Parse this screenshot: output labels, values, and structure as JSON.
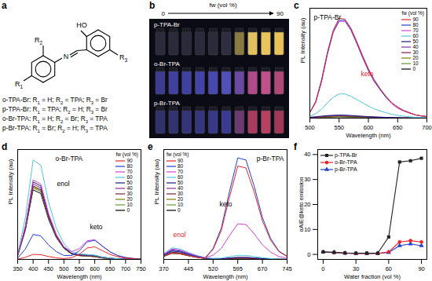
{
  "panels": {
    "a": {
      "panel_label": "a",
      "structure_labels": {
        "hydroxyl": "HO",
        "imine": "N",
        "R1": "R1",
        "R2": "R2",
        "R3": "R3"
      },
      "compounds": [
        "o-TPA-Br: R1 = H; R2 = TPA; R3 = Br",
        "p-TPA-Br: R1 = TPA; R2 = H; R3 = Br",
        "o-Br-TPA: R1 = H; R2 = Br; R3 = TPA",
        "p-Br-TPA: R1 = Br; R2 = H; R3 = TPA"
      ]
    },
    "b": {
      "panel_label": "b",
      "axis_label": "fw (vol %)",
      "range": [
        0,
        90
      ],
      "rows": [
        {
          "name": "p-TPA-Br",
          "vial_colors": [
            "#2a2a3a",
            "#2a2a3a",
            "#2a2a3a",
            "#2a2a3a",
            "#2a2a3a",
            "#2e2e40",
            "#8a7a40",
            "#e0c060",
            "#e8c45a",
            "#e6c258"
          ]
        },
        {
          "name": "o-Br-TPA",
          "vial_colors": [
            "#3c3c90",
            "#4040a0",
            "#4040a0",
            "#4444a8",
            "#4848b0",
            "#5050b8",
            "#6a4aa0",
            "#b04a8a",
            "#c0508a",
            "#b04878"
          ]
        },
        {
          "name": "p-Br-TPA",
          "vial_colors": [
            "#30306a",
            "#323270",
            "#343478",
            "#363680",
            "#383888",
            "#3a3a90",
            "#6a3a70",
            "#a83a60",
            "#b84060",
            "#a03858"
          ]
        }
      ]
    }
  },
  "chart_data": [
    {
      "panel_label": "c",
      "type": "line",
      "title": "p-TPA-Br",
      "x_label": "Wavelength (nm)",
      "y_label": "PL Intensity (au)",
      "x": [
        500,
        510,
        520,
        530,
        540,
        550,
        560,
        570,
        580,
        590,
        600,
        610,
        620,
        630,
        640,
        650,
        660,
        670,
        680,
        690,
        700
      ],
      "xlim": [
        500,
        700
      ],
      "xticks": [
        500,
        550,
        600,
        650,
        700
      ],
      "ylim": [
        0,
        100
      ],
      "yticks": [],
      "tick_labels": "x",
      "legend": "top-right",
      "legend_title": "fw (vol %)",
      "annotations": [
        {
          "text": "keto",
          "color": "#e8262b"
        }
      ],
      "series": [
        {
          "name": "90",
          "color": "#e8262b",
          "values": [
            5,
            15,
            35,
            60,
            80,
            91,
            90,
            82,
            70,
            57,
            45,
            35,
            27,
            20,
            14,
            10,
            7,
            5,
            3,
            2,
            1.5
          ]
        },
        {
          "name": "80",
          "color": "#1f3fd1",
          "values": [
            5,
            15,
            34,
            59,
            79,
            89,
            89,
            81,
            69,
            56,
            44,
            34,
            26,
            19,
            14,
            10,
            7,
            5,
            3,
            2,
            1.5
          ]
        },
        {
          "name": "70",
          "color": "#d63fd6",
          "values": [
            5,
            14,
            33,
            58,
            78,
            88,
            88,
            80,
            68,
            55,
            43,
            33,
            26,
            19,
            13,
            9,
            6.5,
            4.5,
            3,
            2,
            1.5
          ]
        },
        {
          "name": "60",
          "color": "#4fc5e0",
          "values": [
            1.5,
            4,
            8,
            14,
            19,
            22,
            22,
            20,
            17,
            14,
            11,
            8.5,
            6.5,
            5,
            3.5,
            2.5,
            1.8,
            1.3,
            0.8,
            0.5,
            0.4
          ]
        },
        {
          "name": "50",
          "color": "#1a1a80",
          "values": [
            0.8,
            1.2,
            1.8,
            2.3,
            2.6,
            2.8,
            2.7,
            2.4,
            2,
            1.7,
            1.4,
            1.1,
            0.9,
            0.7,
            0.5,
            0.4,
            0.3,
            0.2,
            0.2,
            0.1,
            0.1
          ]
        },
        {
          "name": "40",
          "color": "#8b2fa0",
          "values": [
            0.6,
            1,
            1.5,
            2,
            2.3,
            2.4,
            2.3,
            2.1,
            1.8,
            1.5,
            1.2,
            1,
            0.8,
            0.6,
            0.4,
            0.3,
            0.2,
            0.2,
            0.1,
            0.1,
            0.1
          ]
        },
        {
          "name": "30",
          "color": "#7a1f3d",
          "values": [
            0.5,
            0.8,
            1.2,
            1.6,
            1.9,
            2,
            1.9,
            1.7,
            1.5,
            1.2,
            1,
            0.8,
            0.6,
            0.5,
            0.3,
            0.2,
            0.2,
            0.1,
            0.1,
            0.1,
            0.1
          ]
        },
        {
          "name": "20",
          "color": "#808000",
          "values": [
            0.4,
            0.7,
            1,
            1.3,
            1.5,
            1.6,
            1.5,
            1.4,
            1.2,
            1,
            0.8,
            0.6,
            0.5,
            0.4,
            0.3,
            0.2,
            0.1,
            0.1,
            0.1,
            0.1,
            0
          ]
        },
        {
          "name": "10",
          "color": "#5a9a2e",
          "values": [
            0.3,
            0.5,
            0.8,
            1,
            1.2,
            1.3,
            1.2,
            1.1,
            1,
            0.8,
            0.6,
            0.5,
            0.4,
            0.3,
            0.2,
            0.2,
            0.1,
            0.1,
            0.1,
            0,
            0
          ]
        },
        {
          "name": "0",
          "color": "#000000",
          "values": [
            0.3,
            0.5,
            0.7,
            0.9,
            1.1,
            1.2,
            1.1,
            1,
            0.9,
            0.7,
            0.6,
            0.5,
            0.4,
            0.3,
            0.2,
            0.1,
            0.1,
            0.1,
            0,
            0,
            0
          ]
        }
      ]
    },
    {
      "panel_label": "d",
      "type": "line",
      "title": "o-Br-TPA",
      "x_label": "Wavelength (nm)",
      "y_label": "PL Intensity (au)",
      "x": [
        350,
        375,
        400,
        425,
        450,
        475,
        500,
        525,
        550,
        575,
        600,
        625,
        650,
        675,
        700,
        725,
        750
      ],
      "xlim": [
        350,
        750
      ],
      "xticks": [
        350,
        400,
        450,
        500,
        550,
        600,
        650,
        700,
        750
      ],
      "ylim": [
        0,
        105
      ],
      "yticks": [],
      "tick_labels": "x",
      "legend": "top-right",
      "legend_title": "fw (vol %)",
      "annotations": [
        {
          "text": "enol",
          "color": "#000000"
        },
        {
          "text": "keto",
          "color": "#000000"
        }
      ],
      "series": [
        {
          "name": "90",
          "color": "#e8262b",
          "values": [
            0.3,
            2,
            4.8,
            4.5,
            2.8,
            1.5,
            0.8,
            1.6,
            5,
            10.9,
            12,
            8.4,
            4.8,
            2.4,
            1.2,
            0.6,
            0.2
          ]
        },
        {
          "name": "80",
          "color": "#1f3fd1",
          "values": [
            1.3,
            10,
            23.8,
            22.5,
            13.8,
            7.5,
            3.8,
            3.6,
            8.2,
            16.7,
            18.3,
            12.6,
            7.2,
            3.6,
            1.8,
            0.9,
            0.4
          ]
        },
        {
          "name": "70",
          "color": "#d63fd6",
          "values": [
            4,
            32,
            76,
            72,
            44,
            24,
            12,
            7.4,
            10.4,
            17.8,
            18.8,
            12.6,
            7.2,
            3.6,
            1.8,
            0.9,
            0.4
          ]
        },
        {
          "name": "60",
          "color": "#4fc5e0",
          "values": [
            5,
            40,
            95,
            90,
            55,
            30,
            15,
            7.3,
            5.2,
            4.7,
            4,
            2.1,
            1.2,
            0.6,
            0.3,
            0.2,
            0.1
          ]
        },
        {
          "name": "50",
          "color": "#1a1a80",
          "values": [
            3.9,
            31.2,
            74.1,
            70.2,
            42.9,
            23.4,
            11.7,
            5.8,
            4.3,
            4.3,
            3.8,
            2.1,
            1.2,
            0.6,
            0.3,
            0.2,
            0.1
          ]
        },
        {
          "name": "40",
          "color": "#8b2fa0",
          "values": [
            3.8,
            30.4,
            72.2,
            68.4,
            41.8,
            22.8,
            11.4,
            5.6,
            4.2,
            4.2,
            3.8,
            2.1,
            1.2,
            0.6,
            0.3,
            0.2,
            0.1
          ]
        },
        {
          "name": "30",
          "color": "#7a1f3d",
          "values": [
            3.7,
            29.6,
            70.3,
            66.6,
            40.7,
            22.2,
            11.1,
            5.4,
            3.8,
            3.3,
            2.7,
            1.4,
            0.8,
            0.4,
            0.2,
            0.1,
            0
          ]
        },
        {
          "name": "20",
          "color": "#808000",
          "values": [
            3.7,
            29.2,
            69.4,
            65.7,
            40.2,
            21.9,
            11,
            5.3,
            3.7,
            3.3,
            2.7,
            1.4,
            0.8,
            0.4,
            0.2,
            0.1,
            0
          ]
        },
        {
          "name": "10",
          "color": "#5a9a2e",
          "values": [
            3.6,
            28.8,
            68.4,
            64.8,
            39.6,
            21.6,
            10.8,
            5.2,
            3.7,
            3.2,
            2.7,
            1.4,
            0.8,
            0.4,
            0.2,
            0.1,
            0
          ]
        },
        {
          "name": "0",
          "color": "#000000",
          "values": [
            3.5,
            28,
            66.5,
            63,
            38.5,
            21,
            10.5,
            5.1,
            3.6,
            3.2,
            2.7,
            1.4,
            0.8,
            0.4,
            0.2,
            0.1,
            0
          ]
        }
      ]
    },
    {
      "panel_label": "e",
      "type": "line",
      "title": "p-Br-TPA",
      "x_label": "Wavelength (nm)",
      "y_label": "PL Intensity (au)",
      "x": [
        370,
        395,
        420,
        445,
        470,
        495,
        520,
        545,
        570,
        595,
        620,
        645,
        670,
        695,
        720,
        745
      ],
      "xlim": [
        370,
        745
      ],
      "xticks": [
        370,
        445,
        520,
        595,
        670,
        745
      ],
      "ylim": [
        0,
        105
      ],
      "yticks": [],
      "tick_labels": "x",
      "legend": "top-left",
      "legend_title": "fw (vol %)",
      "annotations": [
        {
          "text": "keto",
          "color": "#000000"
        },
        {
          "text": "enol",
          "color": "#e8262b"
        }
      ],
      "series": [
        {
          "name": "90",
          "color": "#e8262b",
          "values": [
            3,
            6,
            5.4,
            3.6,
            2.1,
            0.9,
            9.5,
            27.6,
            59.8,
            89.2,
            87.4,
            64.4,
            36.8,
            18.4,
            7.4,
            2.8
          ]
        },
        {
          "name": "80",
          "color": "#1f3fd1",
          "values": [
            4,
            8,
            7.2,
            4.8,
            2.8,
            1.2,
            10.4,
            30,
            65,
            97,
            95,
            70,
            40,
            20,
            8,
            3
          ]
        },
        {
          "name": "70",
          "color": "#d63fd6",
          "values": [
            5,
            10,
            9,
            6,
            3.5,
            1.5,
            4,
            10.5,
            22.8,
            34,
            33.3,
            24.5,
            14,
            7,
            2.8,
            1.1
          ]
        },
        {
          "name": "60",
          "color": "#4fc5e0",
          "values": [
            5.5,
            11,
            9.9,
            6.6,
            3.9,
            1.7,
            1,
            1.2,
            2.6,
            3.9,
            3.8,
            2.8,
            1.6,
            0.8,
            0.3,
            0.1
          ]
        },
        {
          "name": "50",
          "color": "#1a1a80",
          "values": [
            4.5,
            9,
            8.1,
            5.4,
            3.2,
            1.4,
            0.5,
            0.6,
            1.3,
            1.9,
            1.9,
            1.4,
            0.8,
            0.4,
            0.2,
            0.1
          ]
        },
        {
          "name": "40",
          "color": "#8b2fa0",
          "values": [
            4,
            8,
            7.2,
            4.8,
            2.8,
            1.2,
            0.4,
            0.6,
            1.3,
            1.9,
            1.9,
            1.4,
            0.8,
            0.4,
            0.2,
            0.1
          ]
        },
        {
          "name": "30",
          "color": "#7a1f3d",
          "values": [
            3.5,
            7,
            6.3,
            4.2,
            2.5,
            1.1,
            0.4,
            0.3,
            0.7,
            1,
            1,
            0.7,
            0.4,
            0.2,
            0.1,
            0
          ]
        },
        {
          "name": "20",
          "color": "#808000",
          "values": [
            3.4,
            6.8,
            6.1,
            4.1,
            2.4,
            1,
            0.4,
            0.3,
            0.7,
            1,
            1,
            0.7,
            0.4,
            0.2,
            0.1,
            0
          ]
        },
        {
          "name": "10",
          "color": "#5a9a2e",
          "values": [
            3,
            6,
            5.4,
            3.6,
            2.1,
            0.9,
            0.3,
            0.3,
            0.7,
            1,
            1,
            0.7,
            0.4,
            0.2,
            0.1,
            0
          ]
        },
        {
          "name": "0",
          "color": "#000000",
          "values": [
            2.9,
            5.8,
            5.2,
            3.5,
            2,
            0.9,
            0.3,
            0.3,
            0.6,
            0.9,
            0.9,
            0.6,
            0.4,
            0.2,
            0.1,
            0
          ]
        }
      ]
    },
    {
      "panel_label": "f",
      "type": "line",
      "x_label": "Water fraction (vol %)",
      "y_label": "αAIE@keto emission",
      "x": [
        0,
        10,
        20,
        30,
        40,
        50,
        60,
        70,
        80,
        90
      ],
      "xlim": [
        -5,
        95
      ],
      "xticks": [
        0,
        30,
        60,
        90
      ],
      "ylim": [
        -2,
        42
      ],
      "yticks": [
        0,
        10,
        20,
        30,
        40
      ],
      "legend": "top-left",
      "series": [
        {
          "name": "p-TPA-Br",
          "color": "#222222",
          "marker": "square",
          "values": [
            1,
            0.8,
            0.6,
            0.5,
            0.5,
            0.5,
            7,
            37,
            37.5,
            38.5
          ]
        },
        {
          "name": "o-Br-TPA",
          "color": "#e8262b",
          "marker": "circle",
          "values": [
            1,
            0.7,
            0.5,
            0.4,
            0.4,
            0.4,
            1,
            5,
            5.5,
            5
          ]
        },
        {
          "name": "p-Br-TPA",
          "color": "#1f3fd1",
          "marker": "triangle",
          "values": [
            1,
            0.9,
            0.5,
            0.4,
            0.4,
            0.4,
            0.8,
            3.5,
            4.2,
            3.5
          ]
        }
      ]
    }
  ]
}
